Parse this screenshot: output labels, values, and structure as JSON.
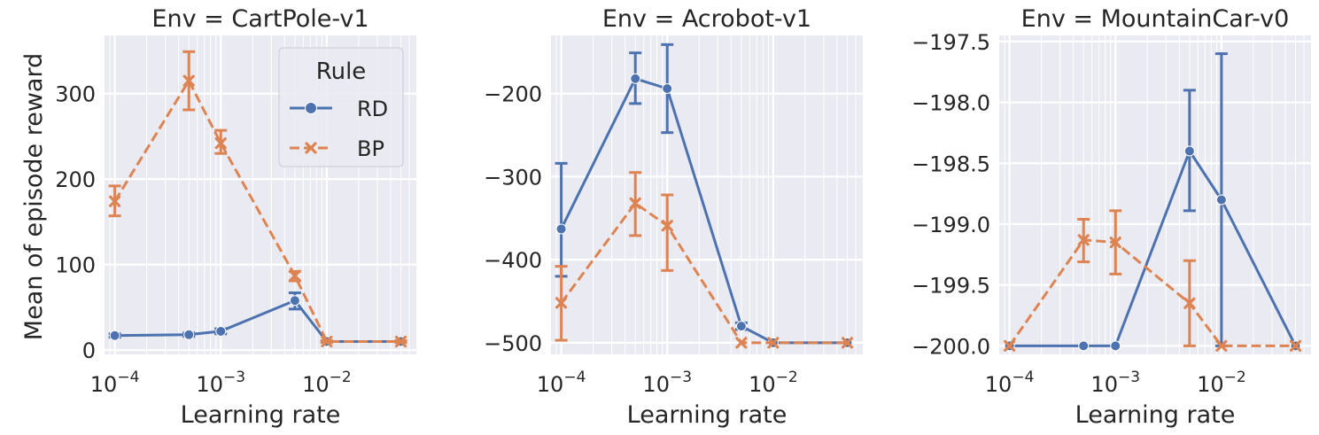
{
  "figure": {
    "ylabel": "Mean of episode reward",
    "legend": {
      "title": "Rule",
      "entries": [
        {
          "label": "RD",
          "color": "#4c72b0",
          "marker": "circle",
          "linestyle": "solid"
        },
        {
          "label": "BP",
          "color": "#dd8452",
          "marker": "x",
          "linestyle": "dashed"
        }
      ]
    },
    "colors": {
      "background": "#eaeaf2",
      "grid": "#ffffff",
      "RD": "#4c72b0",
      "BP": "#dd8452"
    }
  },
  "chart_data": [
    {
      "type": "line",
      "title": "Env = CartPole-v1",
      "xlabel": "Learning rate",
      "ylabel": "Mean of episode reward",
      "xscale": "log",
      "xlim": [
        8e-05,
        0.07
      ],
      "ylim": [
        -5,
        368
      ],
      "xticks": [
        0.0001,
        0.001,
        0.01
      ],
      "xtick_labels": [
        "10^-4",
        "10^-3",
        "10^-2"
      ],
      "yticks": [
        0,
        100,
        200,
        300
      ],
      "ytick_labels": [
        "0",
        "100",
        "200",
        "300"
      ],
      "grid": true,
      "legend_position": "top-right",
      "series": [
        {
          "name": "RD",
          "x": [
            0.0001,
            0.0005,
            0.001,
            0.005,
            0.01,
            0.05
          ],
          "y": [
            17,
            18,
            22,
            58,
            10,
            10
          ],
          "err_low": [
            15,
            16,
            19,
            48,
            9,
            9
          ],
          "err_high": [
            19,
            20,
            25,
            67,
            11,
            11
          ]
        },
        {
          "name": "BP",
          "x": [
            0.0001,
            0.0005,
            0.001,
            0.005,
            0.01,
            0.05
          ],
          "y": [
            174,
            315,
            242,
            87,
            10,
            10
          ],
          "err_low": [
            157,
            281,
            230,
            81,
            9,
            9
          ],
          "err_high": [
            192,
            349,
            257,
            92,
            11,
            11
          ]
        }
      ]
    },
    {
      "type": "line",
      "title": "Env = Acrobot-v1",
      "xlabel": "Learning rate",
      "ylabel": "",
      "xscale": "log",
      "xlim": [
        8e-05,
        0.07
      ],
      "ylim": [
        -514,
        -130
      ],
      "xticks": [
        0.0001,
        0.001,
        0.01
      ],
      "xtick_labels": [
        "10^-4",
        "10^-3",
        "10^-2"
      ],
      "yticks": [
        -500,
        -400,
        -300,
        -200
      ],
      "ytick_labels": [
        "−500",
        "−400",
        "−300",
        "−200"
      ],
      "grid": true,
      "series": [
        {
          "name": "RD",
          "x": [
            0.0001,
            0.0005,
            0.001,
            0.005,
            0.01,
            0.05
          ],
          "y": [
            -363,
            -182,
            -194,
            -480,
            -500,
            -500
          ],
          "err_low": [
            -420,
            -212,
            -247,
            -484,
            -500,
            -500
          ],
          "err_high": [
            -284,
            -151,
            -141,
            -476,
            -500,
            -500
          ]
        },
        {
          "name": "BP",
          "x": [
            0.0001,
            0.0005,
            0.001,
            0.005,
            0.01,
            0.05
          ],
          "y": [
            -452,
            -332,
            -359,
            -500,
            -500,
            -500
          ],
          "err_low": [
            -497,
            -371,
            -413,
            -500,
            -500,
            -500
          ],
          "err_high": [
            -408,
            -295,
            -322,
            -500,
            -500,
            -500
          ]
        }
      ]
    },
    {
      "type": "line",
      "title": "Env = MountainCar-v0",
      "xlabel": "Learning rate",
      "ylabel": "",
      "xscale": "log",
      "xlim": [
        8e-05,
        0.07
      ],
      "ylim": [
        -200.07,
        -197.45
      ],
      "xticks": [
        0.0001,
        0.001,
        0.01
      ],
      "xtick_labels": [
        "10^-4",
        "10^-3",
        "10^-2"
      ],
      "yticks": [
        -200.0,
        -199.5,
        -199.0,
        -198.5,
        -198.0,
        -197.5
      ],
      "ytick_labels": [
        "−200.0",
        "−199.5",
        "−199.0",
        "−198.5",
        "−198.0",
        "−197.5"
      ],
      "grid": true,
      "series": [
        {
          "name": "RD",
          "x": [
            0.0001,
            0.0005,
            0.001,
            0.005,
            0.01,
            0.05
          ],
          "y": [
            -200.0,
            -200.0,
            -200.0,
            -198.4,
            -198.8,
            -200.0
          ],
          "err_low": [
            -200.0,
            -200.0,
            -200.0,
            -198.89,
            -200.0,
            -200.0
          ],
          "err_high": [
            -200.0,
            -200.0,
            -200.0,
            -197.9,
            -197.6,
            -200.0
          ]
        },
        {
          "name": "BP",
          "x": [
            0.0001,
            0.0005,
            0.001,
            0.005,
            0.01,
            0.05
          ],
          "y": [
            -200.0,
            -199.13,
            -199.15,
            -199.65,
            -200.0,
            -200.0
          ],
          "err_low": [
            -200.0,
            -199.31,
            -199.41,
            -200.0,
            -200.0,
            -200.0
          ],
          "err_high": [
            -200.0,
            -198.96,
            -198.89,
            -199.3,
            -200.0,
            -200.0
          ]
        }
      ]
    }
  ]
}
